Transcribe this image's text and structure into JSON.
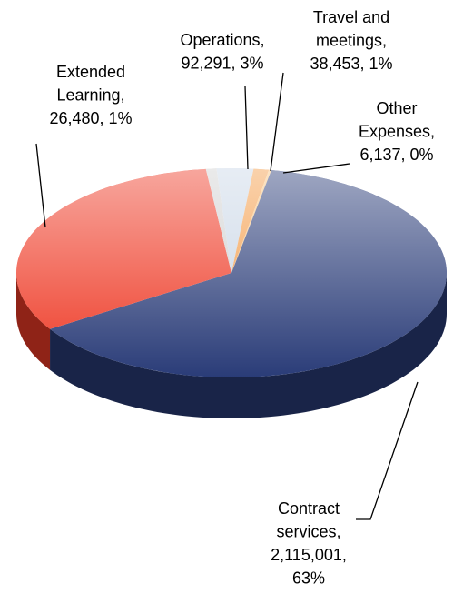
{
  "chart_data": {
    "type": "pie3d",
    "values": [
      92291,
      38453,
      6137,
      2115001,
      1078000,
      26480
    ],
    "labels": [
      [
        "Operations,",
        "92,291, 3%"
      ],
      [
        "Travel and",
        "meetings,",
        "38,453, 1%"
      ],
      [
        "Other",
        "Expenses,",
        "6,137, 0%"
      ],
      [
        "Contract",
        "services,",
        "2,115,001,",
        "63%"
      ],
      null,
      [
        "Extended",
        "Learning,",
        "26,480, 1%"
      ]
    ],
    "colors": [
      "#c9d6e6",
      "#f39a45",
      "#f7c27c",
      "#2a3c78",
      "#ee3a26",
      "#d0d0d0"
    ]
  }
}
